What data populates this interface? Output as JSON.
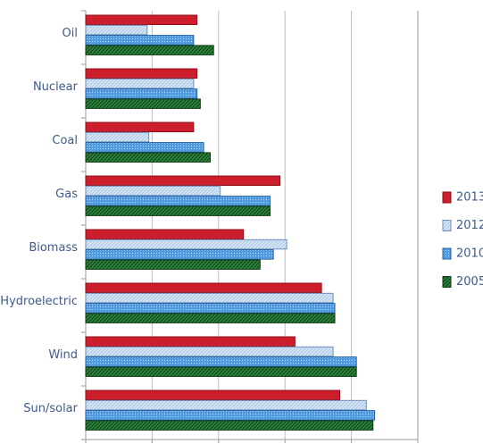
{
  "chart_data": {
    "type": "bar",
    "orientation": "horizontal",
    "title": "",
    "xlabel": "",
    "ylabel": "",
    "categories": [
      "Oil",
      "Nuclear",
      "Coal",
      "Gas",
      "Biomass",
      "Hydroelectric",
      "Wind",
      "Sun/solar"
    ],
    "series": [
      {
        "name": "2013",
        "color": "#cc1f2b",
        "pattern": "solid",
        "values": [
          33.5,
          33.5,
          32.5,
          58.5,
          47.5,
          71.0,
          63.0,
          76.5
        ]
      },
      {
        "name": "2012",
        "color": "#c5d9ef",
        "pattern": "hatch-light",
        "values": [
          18.5,
          32.5,
          19.0,
          40.5,
          60.5,
          74.5,
          74.5,
          84.5
        ]
      },
      {
        "name": "2010",
        "color": "#3d8fd6",
        "pattern": "dots",
        "values": [
          32.5,
          33.5,
          35.5,
          55.5,
          56.5,
          75.0,
          81.5,
          87.0
        ]
      },
      {
        "name": "2005",
        "color": "#2e8b3e",
        "pattern": "hatch-dark",
        "values": [
          38.5,
          34.5,
          37.5,
          55.5,
          52.5,
          75.0,
          81.5,
          86.5
        ]
      }
    ],
    "xlim": [
      0,
      100
    ],
    "xticks": [
      0,
      20,
      40,
      60,
      80,
      100
    ],
    "grid": true,
    "legend": {
      "position": "right",
      "order": [
        "2013",
        "2012",
        "2010",
        "2005"
      ]
    }
  }
}
